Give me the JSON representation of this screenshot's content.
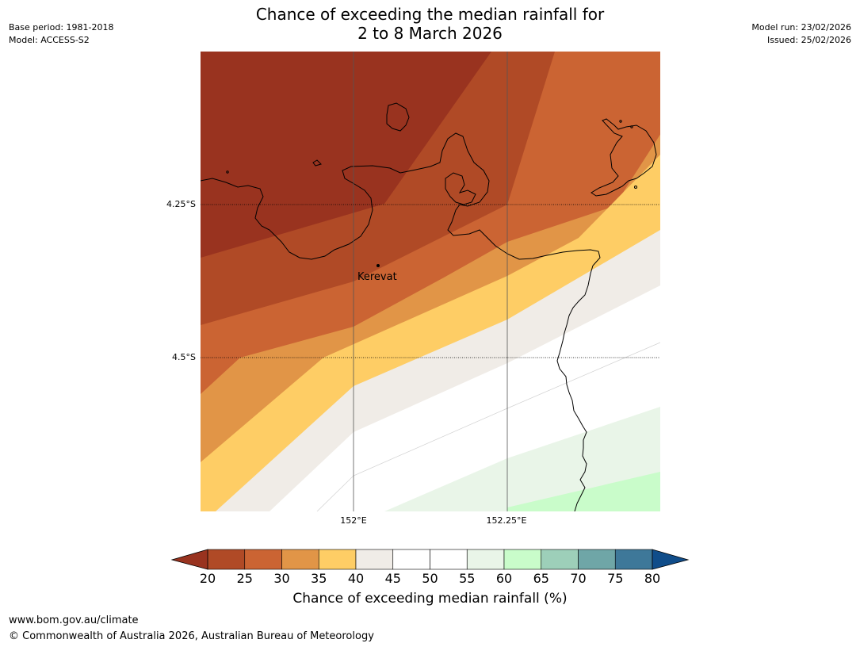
{
  "title": {
    "line1": "Chance of exceeding the median rainfall for",
    "line2": "2 to 8 March 2026"
  },
  "meta": {
    "base_period": "Base period: 1981-2018",
    "model": "Model: ACCESS-S2",
    "model_run": "Model run: 23/02/2026",
    "issued": "Issued: 25/02/2026"
  },
  "map": {
    "lat_labels": [
      "4.25°S",
      "4.5°S"
    ],
    "lon_labels": [
      "152°E",
      "152.25°E"
    ],
    "town": "Kerevat"
  },
  "colorbar": {
    "ticks": [
      "20",
      "25",
      "30",
      "35",
      "40",
      "45",
      "50",
      "55",
      "60",
      "65",
      "70",
      "75",
      "80"
    ],
    "under_color": "#99331f",
    "over_color": "#104d8a",
    "colors": [
      "#b04a26",
      "#cb6433",
      "#e19547",
      "#fecd65",
      "#f0ece7",
      "#ffffff",
      "#ffffff",
      "#e9f5e8",
      "#c9fcca",
      "#9dcfb9",
      "#6fa6a7",
      "#3e7899"
    ],
    "label": "Chance of exceeding median rainfall (%)"
  },
  "footer": {
    "url": "www.bom.gov.au/climate",
    "copyright": "© Commonwealth of Australia 2026, Australian Bureau of Meteorology"
  }
}
